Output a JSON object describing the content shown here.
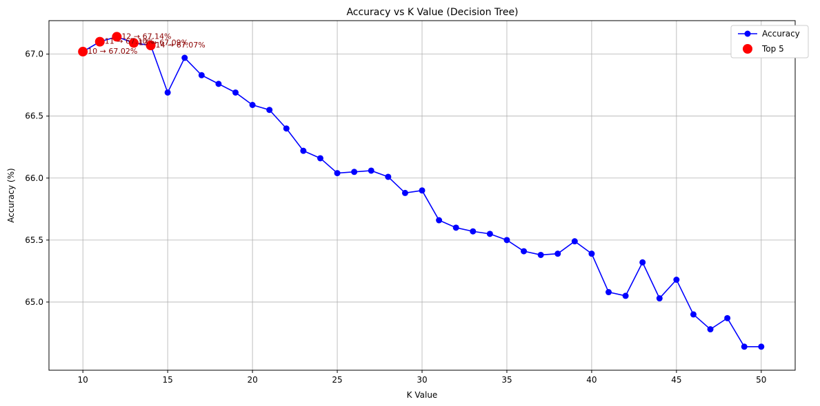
{
  "chart_data": {
    "type": "line",
    "title": "Accuracy vs K Value (Decision Tree)",
    "xlabel": "K Value",
    "ylabel": "Accuracy (%)",
    "xlim": [
      8,
      52
    ],
    "ylim": [
      64.45,
      67.27
    ],
    "xticks": [
      10,
      15,
      20,
      25,
      30,
      35,
      40,
      45,
      50
    ],
    "yticks": [
      65.0,
      65.5,
      66.0,
      66.5,
      67.0
    ],
    "grid": true,
    "legend_position": "top-right",
    "series": [
      {
        "name": "Accuracy",
        "color": "#0000ff",
        "x": [
          10,
          11,
          12,
          13,
          14,
          15,
          16,
          17,
          18,
          19,
          20,
          21,
          22,
          23,
          24,
          25,
          26,
          27,
          28,
          29,
          30,
          31,
          32,
          33,
          34,
          35,
          36,
          37,
          38,
          39,
          40,
          41,
          42,
          43,
          44,
          45,
          46,
          47,
          48,
          49,
          50
        ],
        "y": [
          67.02,
          67.1,
          67.14,
          67.09,
          67.07,
          66.69,
          66.97,
          66.83,
          66.76,
          66.69,
          66.59,
          66.55,
          66.4,
          66.22,
          66.16,
          66.04,
          66.05,
          66.06,
          66.01,
          65.88,
          65.9,
          65.66,
          65.6,
          65.57,
          65.55,
          65.5,
          65.41,
          65.38,
          65.39,
          65.49,
          65.39,
          65.08,
          65.05,
          65.32,
          65.03,
          65.18,
          64.9,
          64.78,
          64.87,
          64.64,
          64.64
        ]
      },
      {
        "name": "Top 5",
        "color": "#ff0000",
        "x": [
          10,
          11,
          12,
          13,
          14
        ],
        "y": [
          67.02,
          67.1,
          67.14,
          67.09,
          67.07
        ]
      }
    ],
    "annotations": [
      {
        "x": 10,
        "y": 67.02,
        "text": "10 → 67.02%"
      },
      {
        "x": 11,
        "y": 67.1,
        "text": "11 → 67.10%"
      },
      {
        "x": 12,
        "y": 67.14,
        "text": "12 → 67.14%"
      },
      {
        "x": 13,
        "y": 67.09,
        "text": "13 → 67.09%"
      },
      {
        "x": 14,
        "y": 67.07,
        "text": "14 → 67.07%"
      }
    ]
  }
}
